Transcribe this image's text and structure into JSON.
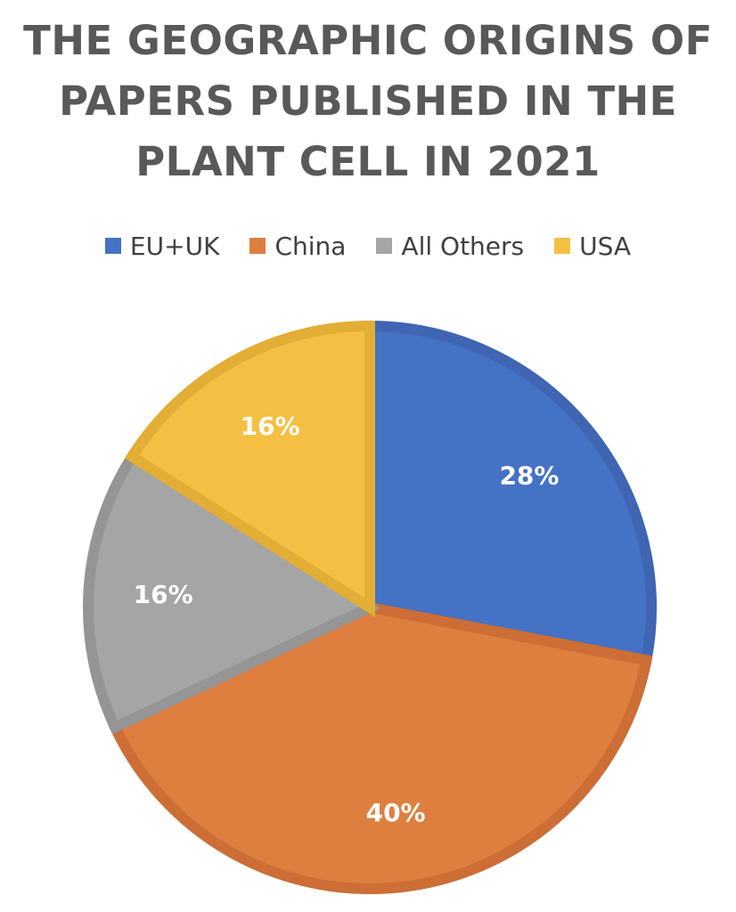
{
  "chart_data": {
    "type": "pie",
    "title_lines": [
      "THE GEOGRAPHIC ORIGINS OF",
      "PAPERS PUBLISHED IN THE",
      "PLANT CELL IN 2021"
    ],
    "legend_position": "top",
    "slices": [
      {
        "name": "EU+UK",
        "value": 28,
        "label": "28%",
        "color": "#4472C4",
        "stroke": "#3F65B3"
      },
      {
        "name": "China",
        "value": 40,
        "label": "40%",
        "color": "#DE7F3F",
        "stroke": "#CC6E35"
      },
      {
        "name": "All Others",
        "value": 16,
        "label": "16%",
        "color": "#A5A5A5",
        "stroke": "#959595"
      },
      {
        "name": "USA",
        "value": 16,
        "label": "16%",
        "color": "#F4BF43",
        "stroke": "#E2AE35"
      }
    ]
  }
}
